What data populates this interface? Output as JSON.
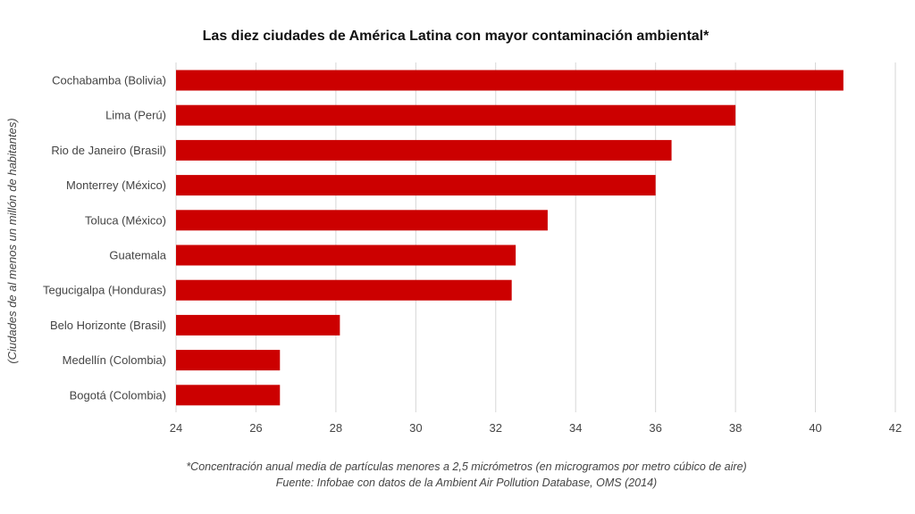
{
  "chart_data": {
    "type": "bar",
    "orientation": "horizontal",
    "title": "Las diez ciudades de América Latina con mayor contaminación ambiental*",
    "xlabel": "",
    "ylabel": "(Ciudades de al menos un millón de habitantes)",
    "xlim": [
      24,
      42
    ],
    "xticks": [
      24,
      26,
      28,
      30,
      32,
      34,
      36,
      38,
      40,
      42
    ],
    "grid": true,
    "bar_color": "#cc0000",
    "categories": [
      "Cochabamba (Bolivia)",
      "Lima (Perú)",
      "Rio de Janeiro (Brasil)",
      "Monterrey (México)",
      "Toluca (México)",
      "Guatemala",
      "Tegucigalpa (Honduras)",
      "Belo Horizonte (Brasil)",
      "Medellín (Colombia)",
      "Bogotá (Colombia)"
    ],
    "values": [
      40.7,
      38.0,
      36.4,
      36.0,
      33.3,
      32.5,
      32.4,
      28.1,
      26.6,
      26.6
    ],
    "footnotes": [
      "*Concentración anual media de partículas menores a 2,5 micrómetros (en microgramos por metro cúbico de aire)",
      "Fuente: Infobae con datos de la Ambient Air Pollution Database, OMS (2014)"
    ]
  }
}
